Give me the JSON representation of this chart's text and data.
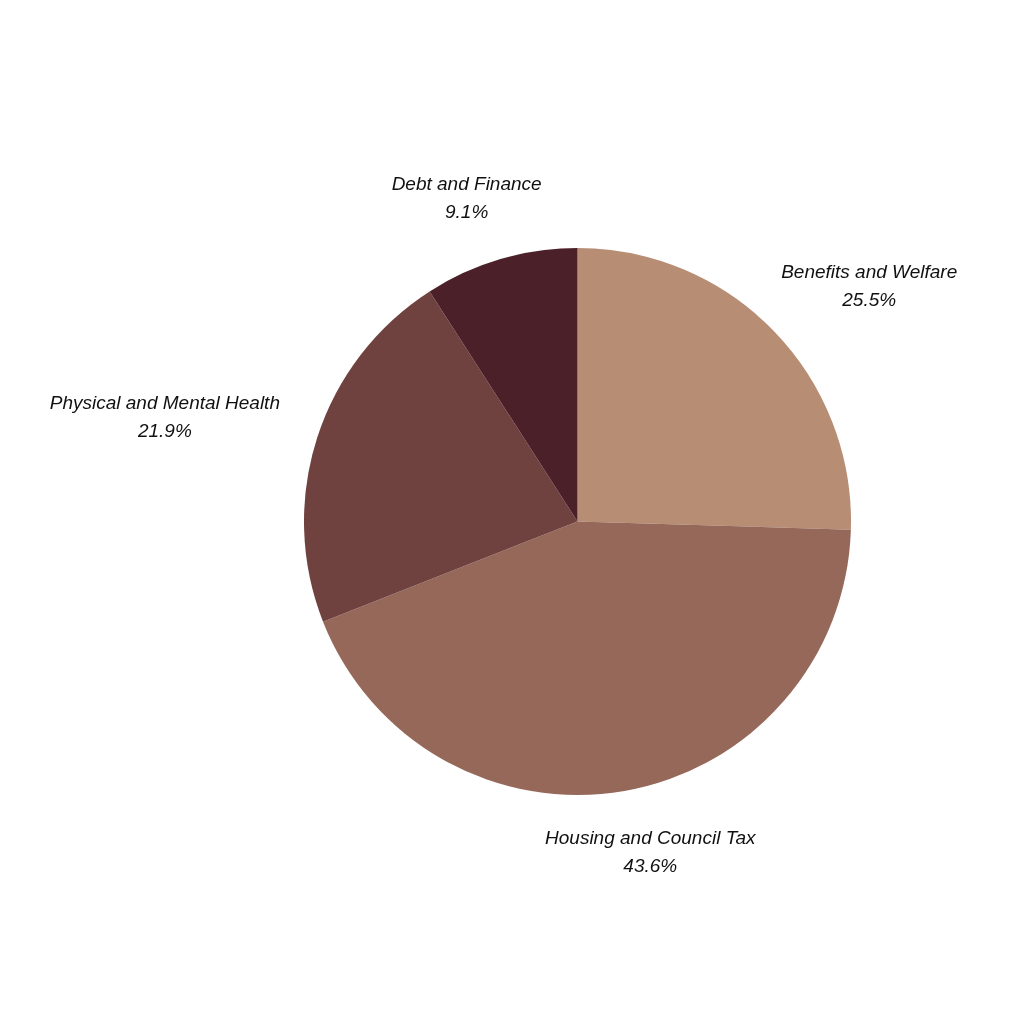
{
  "chart_data": {
    "type": "pie",
    "categories": [
      "Benefits and Welfare",
      "Housing and Council Tax",
      "Physical and Mental Health",
      "Debt and Finance"
    ],
    "values": [
      25.5,
      43.6,
      21.9,
      9.1
    ],
    "colors": [
      "#b78d74",
      "#956859",
      "#6f4240",
      "#4b2029"
    ],
    "value_labels": [
      "25.5%",
      "43.6%",
      "21.9%",
      "9.1%"
    ],
    "legend": false
  }
}
